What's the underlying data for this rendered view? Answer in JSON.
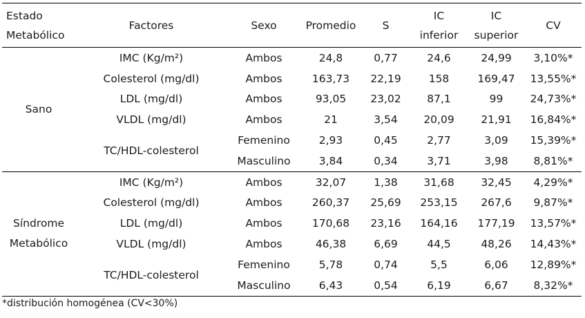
{
  "headers": {
    "estado": [
      "Estado",
      "Metabólico"
    ],
    "factores": "Factores",
    "sexo": "Sexo",
    "promedio": "Promedio",
    "s": "S",
    "ic_inferior": [
      "IC",
      "inferior"
    ],
    "ic_superior": [
      "IC",
      "superior"
    ],
    "cv": "CV"
  },
  "groups": [
    {
      "state": [
        "Sano"
      ],
      "rows": [
        {
          "factor": "IMC (Kg/m²)",
          "sexo": "Ambos",
          "promedio": "24,8",
          "s": "0,77",
          "ic_inf": "24,6",
          "ic_sup": "24,99",
          "cv": "3,10%*"
        },
        {
          "factor": "Colesterol (mg/dl)",
          "sexo": "Ambos",
          "promedio": "163,73",
          "s": "22,19",
          "ic_inf": "158",
          "ic_sup": "169,47",
          "cv": "13,55%*"
        },
        {
          "factor": "LDL (mg/dl)",
          "sexo": "Ambos",
          "promedio": "93,05",
          "s": "23,02",
          "ic_inf": "87,1",
          "ic_sup": "99",
          "cv": "24,73%*"
        },
        {
          "factor": "VLDL (mg/dl)",
          "sexo": "Ambos",
          "promedio": "21",
          "s": "3,54",
          "ic_inf": "20,09",
          "ic_sup": "21,91",
          "cv": "16,84%*"
        },
        {
          "factor": "TC/HDL-colesterol",
          "sexo": "Femenino",
          "promedio": "2,93",
          "s": "0,45",
          "ic_inf": "2,77",
          "ic_sup": "3,09",
          "cv": "15,39%*"
        },
        {
          "factor": "",
          "sexo": "Masculino",
          "promedio": "3,84",
          "s": "0,34",
          "ic_inf": "3,71",
          "ic_sup": "3,98",
          "cv": "8,81%*"
        }
      ]
    },
    {
      "state": [
        "Síndrome",
        "Metabólico"
      ],
      "rows": [
        {
          "factor": "IMC (Kg/m²)",
          "sexo": "Ambos",
          "promedio": "32,07",
          "s": "1,38",
          "ic_inf": "31,68",
          "ic_sup": "32,45",
          "cv": "4,29%*"
        },
        {
          "factor": "Colesterol (mg/dl)",
          "sexo": "Ambos",
          "promedio": "260,37",
          "s": "25,69",
          "ic_inf": "253,15",
          "ic_sup": "267,6",
          "cv": "9,87%*"
        },
        {
          "factor": "LDL (mg/dl)",
          "sexo": "Ambos",
          "promedio": "170,68",
          "s": "23,16",
          "ic_inf": "164,16",
          "ic_sup": "177,19",
          "cv": "13,57%*"
        },
        {
          "factor": "VLDL (mg/dl)",
          "sexo": "Ambos",
          "promedio": "46,38",
          "s": "6,69",
          "ic_inf": "44,5",
          "ic_sup": "48,26",
          "cv": "14,43%*"
        },
        {
          "factor": "TC/HDL-colesterol",
          "sexo": "Femenino",
          "promedio": "5,78",
          "s": "0,74",
          "ic_inf": "5,5",
          "ic_sup": "6,06",
          "cv": "12,89%*"
        },
        {
          "factor": "",
          "sexo": "Masculino",
          "promedio": "6,43",
          "s": "0,54",
          "ic_inf": "6,19",
          "ic_sup": "6,67",
          "cv": "8,32%*"
        }
      ]
    }
  ],
  "footnote": "*distribución homogénea (CV<30%)"
}
